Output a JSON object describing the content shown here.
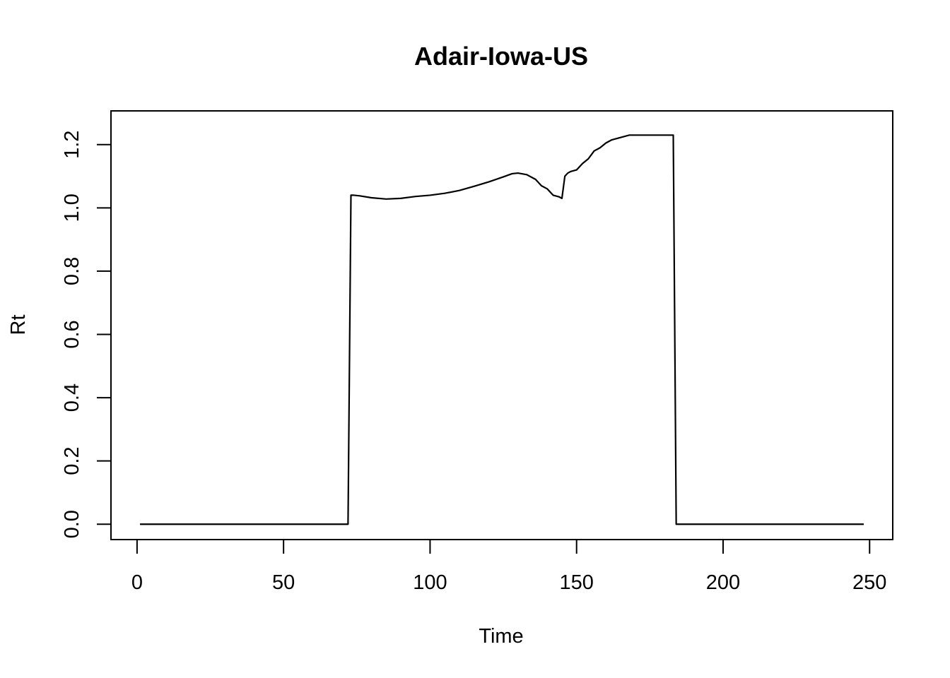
{
  "chart_data": {
    "type": "line",
    "title": "Adair-Iowa-US",
    "xlabel": "Time",
    "ylabel": "Rt",
    "xlim": [
      -8.9,
      257.9
    ],
    "ylim": [
      -0.0486,
      1.3066
    ],
    "xticks": [
      0,
      50,
      100,
      150,
      200,
      250
    ],
    "xtick_labels": [
      "0",
      "50",
      "100",
      "150",
      "200",
      "250"
    ],
    "yticks": [
      0.0,
      0.2,
      0.4,
      0.6,
      0.8,
      1.0,
      1.2
    ],
    "ytick_labels": [
      "0.0",
      "0.2",
      "0.4",
      "0.6",
      "0.8",
      "1.0",
      "1.2"
    ],
    "grid": false,
    "series": [
      {
        "color": "#000000",
        "x": [
          1,
          72,
          73,
          74,
          76,
          80,
          85,
          90,
          95,
          100,
          105,
          110,
          115,
          120,
          125,
          128,
          130,
          133,
          136,
          138,
          140,
          142,
          144,
          145,
          146,
          147,
          148,
          150,
          152,
          154,
          156,
          158,
          160,
          162,
          164,
          166,
          168,
          170,
          172,
          175,
          180,
          183,
          184,
          185,
          190,
          200,
          210,
          220,
          230,
          240,
          248
        ],
        "y": [
          0.0,
          0.0,
          1.04,
          1.04,
          1.038,
          1.032,
          1.028,
          1.03,
          1.036,
          1.04,
          1.046,
          1.055,
          1.068,
          1.082,
          1.098,
          1.108,
          1.11,
          1.105,
          1.09,
          1.07,
          1.06,
          1.04,
          1.035,
          1.03,
          1.1,
          1.11,
          1.115,
          1.12,
          1.14,
          1.155,
          1.18,
          1.19,
          1.205,
          1.215,
          1.22,
          1.225,
          1.23,
          1.23,
          1.23,
          1.23,
          1.23,
          1.23,
          0.0,
          0.0,
          0.0,
          0.0,
          0.0,
          0.0,
          0.0,
          0.0,
          0.0
        ]
      }
    ]
  }
}
